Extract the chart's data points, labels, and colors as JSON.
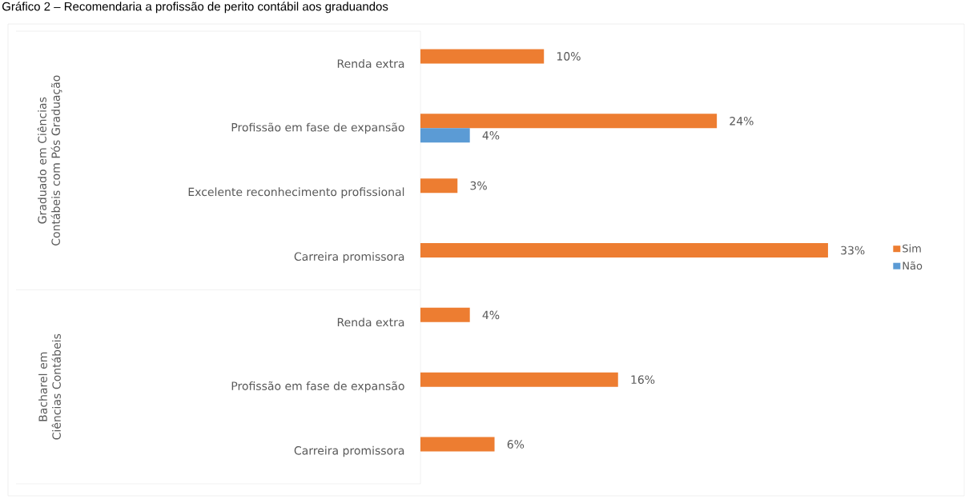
{
  "chart_data": {
    "type": "bar",
    "orientation": "horizontal",
    "title": "Gráfico 2 – Recomendaria a profissão de perito contábil aos graduandos",
    "categories": [
      "Renda extra",
      "Profissão em fase de expansão",
      "Excelente reconhecimento profissional",
      "Carreira promissora",
      "Renda extra",
      "Profissão em fase de expansão",
      "Carreira promissora"
    ],
    "series": [
      {
        "name": "Sim",
        "color": "#ed7d31",
        "values": [
          10,
          24,
          3,
          33,
          4,
          16,
          6
        ],
        "value_labels": [
          "10%",
          "24%",
          "3%",
          "33%",
          "4%",
          "16%",
          "6%"
        ]
      },
      {
        "name": "Não",
        "color": "#5b9bd5",
        "values": [
          null,
          4,
          null,
          null,
          null,
          null,
          null
        ],
        "value_labels": [
          null,
          "4%",
          null,
          null,
          null,
          null,
          null
        ]
      }
    ],
    "legend": "right",
    "annotations": [
      "Graduado em Ciências Contábeis com Pós Graduação",
      "Bacharel em Ciências Contábeis"
    ]
  }
}
